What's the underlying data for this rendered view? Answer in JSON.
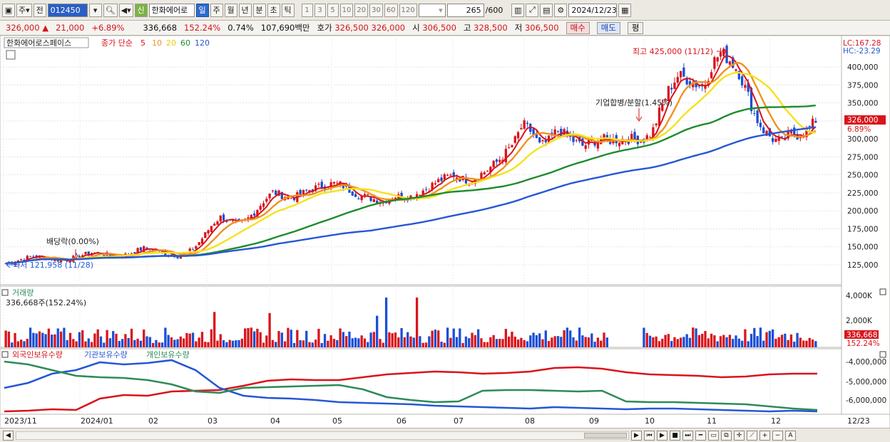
{
  "toolbar": {
    "period_selector": "주",
    "prev_label": "전",
    "stock_code": "012450",
    "new_badge": "신",
    "stock_name": "한화에어로",
    "period_buttons": [
      "일",
      "주",
      "월",
      "년",
      "분",
      "초",
      "틱"
    ],
    "active_period": "일",
    "interval_buttons": [
      "1",
      "3",
      "5",
      "10",
      "20",
      "30",
      "60",
      "120"
    ],
    "bar_count": "265",
    "bar_max": "/600",
    "date": "2024/12/23"
  },
  "quote": {
    "price": "326,000",
    "change": "21,000",
    "change_pct": "+6.89%",
    "volume": "336,668",
    "volume_ratio": "152.24%",
    "turnover": "0.74%",
    "trade_value": "107,690백만",
    "bid_label": "호가",
    "bid": "326,500",
    "ask": "326,000",
    "open_label": "시",
    "open": "306,500",
    "high_label": "고",
    "high": "328,500",
    "low_label": "저",
    "low": "306,500",
    "buy_button": "매수",
    "sell_button": "매도",
    "eval_button": "평"
  },
  "price_panel": {
    "title": "한화에어로스페이스",
    "indicator": "종가 단순",
    "ma_periods": [
      "5",
      "10",
      "20",
      "60",
      "120"
    ],
    "ma_colors": [
      "#d9141b",
      "#f0921e",
      "#f5e21c",
      "#1e8c2c",
      "#2657d6"
    ],
    "lc_label": "LC:167.28",
    "hc_label": "HC:-23.29",
    "y_ticks": [
      "400,000",
      "375,000",
      "350,000",
      "325,000",
      "300,000",
      "275,000",
      "250,000",
      "225,000",
      "200,000",
      "175,000",
      "150,000",
      "125,000"
    ],
    "current_price_tag": "326,000",
    "current_pct_tag": "6.89%",
    "annotations": {
      "high": "최고 425,000 (11/12)",
      "low": "최저 121,958 (11/28)",
      "dividend": "배당락(0.00%)",
      "split": "기업합병/분할(1.45%)"
    }
  },
  "volume_panel": {
    "title": "거래량",
    "summary": "336,668주(152.24%)",
    "y_ticks": [
      "4,000K",
      "2,000K"
    ],
    "current_tag": "336,668",
    "current_pct_tag": "152.24%"
  },
  "holdings_panel": {
    "legend": [
      "외국인보유수량",
      "기관보유수량",
      "개인보유수량"
    ],
    "colors": [
      "#d9141b",
      "#2657d6",
      "#2e8b57"
    ],
    "y_ticks": [
      "-4,000,000",
      "-5,000,000",
      "-6,000,000"
    ]
  },
  "x_axis": {
    "labels": [
      "2023/11",
      "2024/01",
      "02",
      "03",
      "04",
      "05",
      "06",
      "07",
      "08",
      "09",
      "10",
      "11",
      "12"
    ],
    "right_label": "12/23"
  },
  "chart_data": {
    "type": "line",
    "price_ticks": [
      400000,
      375000,
      350000,
      325000,
      300000,
      275000,
      250000,
      225000,
      200000,
      175000,
      150000,
      125000
    ],
    "closes": [
      127000,
      130000,
      133000,
      137000,
      136000,
      134000,
      132000,
      131000,
      135000,
      139000,
      142000,
      141000,
      138000,
      136000,
      139000,
      144000,
      148000,
      146000,
      142000,
      140000,
      137000,
      141000,
      150000,
      165000,
      182000,
      192000,
      185000,
      181000,
      188000,
      200000,
      215000,
      226000,
      222000,
      218000,
      221000,
      228000,
      232000,
      235000,
      238000,
      236000,
      228000,
      221000,
      219000,
      215000,
      214000,
      221000,
      219000,
      220000,
      226000,
      232000,
      240000,
      246000,
      250000,
      244000,
      242000,
      250000,
      258000,
      268000,
      280000,
      295000,
      320000,
      310000,
      290000,
      297000,
      312000,
      305000,
      296000,
      290000,
      296000,
      300000,
      298000,
      299000,
      300000,
      300000,
      299000,
      308000,
      342000,
      370000,
      388000,
      384000,
      377000,
      372000,
      405000,
      420000,
      410000,
      395000,
      365000,
      330000,
      311000,
      300000,
      295000,
      307000,
      305000,
      311000,
      326000
    ]
  }
}
